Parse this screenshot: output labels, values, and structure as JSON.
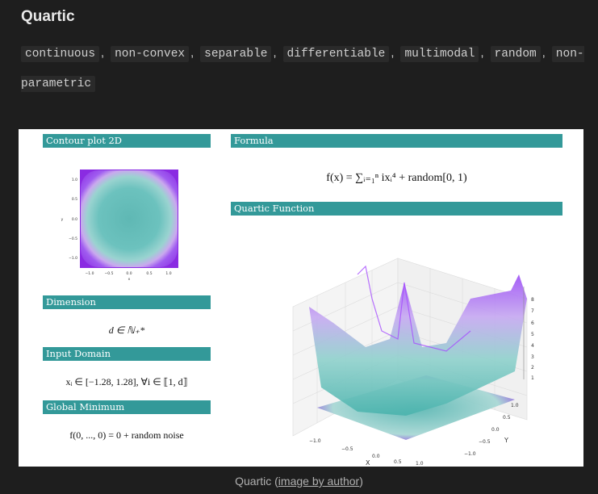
{
  "title": "Quartic",
  "tags": [
    "continuous",
    "non-convex",
    "separable",
    "differentiable",
    "multimodal",
    "random",
    "non-parametric"
  ],
  "tag_separator": ",",
  "figure": {
    "sections": {
      "contour": "Contour plot 2D",
      "formula": "Formula",
      "function": "Quartic Function",
      "dimension": "Dimension",
      "domain": "Input Domain",
      "minimum": "Global Minimum"
    },
    "formula_text": "f(x) = ∑ᵢ₌₁ⁿ ixᵢ⁴ + random[0, 1)",
    "dimension_text": "d ∈ ℕ₊*",
    "domain_text": "xᵢ ∈ [−1.28, 1.28], ∀i ∈ ⟦1, d⟧",
    "minimum_text": "f(0, ..., 0) = 0 + random noise",
    "contour_axes": {
      "x_ticks": [
        "−1.0",
        "−0.5",
        "0.0",
        "0.5",
        "1.0"
      ],
      "y_ticks": [
        "1.0",
        "0.5",
        "0.0",
        "−0.5",
        "−1.0"
      ],
      "xlabel": "x",
      "ylabel": "y"
    },
    "surface_axes": {
      "x_ticks": [
        "−1.0",
        "−0.5",
        "0.0",
        "0.5",
        "1.0"
      ],
      "y_ticks": [
        "1.0",
        "0.5",
        "0.0",
        "−0.5",
        "−1.0"
      ],
      "z_ticks": [
        "1",
        "2",
        "3",
        "4",
        "5",
        "6",
        "7",
        "8"
      ],
      "xlabel": "X",
      "ylabel": "Y"
    },
    "colors": {
      "header": "#339999",
      "surface_low": "#5fc3c0",
      "surface_high": "#a64dff"
    }
  },
  "caption": {
    "prefix": "Quartic (",
    "link": "image by author",
    "suffix": ")"
  }
}
